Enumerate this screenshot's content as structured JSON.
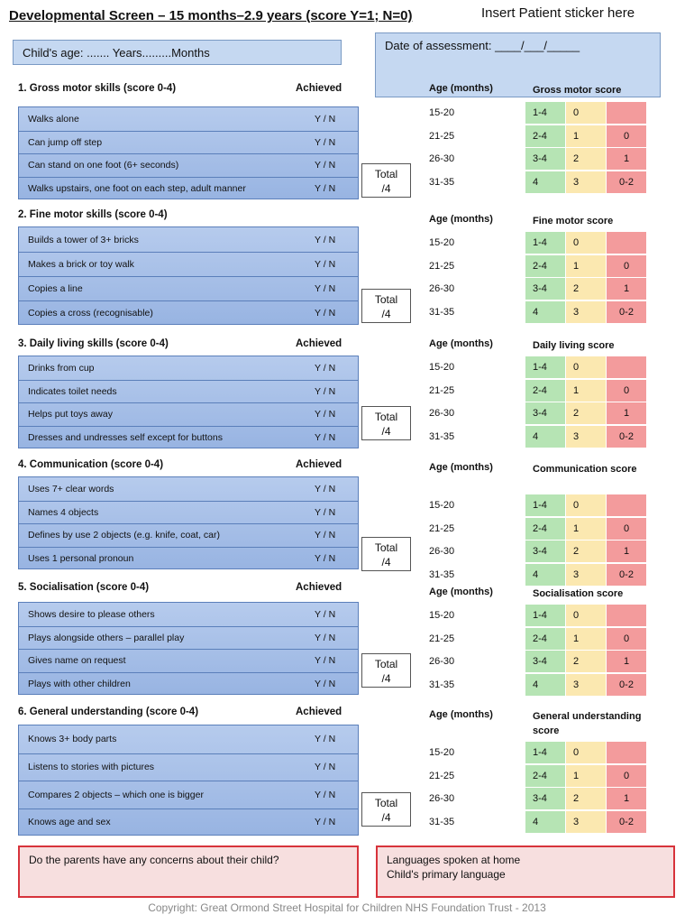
{
  "header": {
    "title": "Developmental Screen – 15 months–2.9 years (score Y=1; N=0)",
    "sticker": "Insert Patient sticker here",
    "child_age": "Child's age: ....... Years.........Months",
    "date_of_assessment": "Date of assessment: ____/___/_____"
  },
  "age_header": "Age (months)",
  "total_label": "Total",
  "total_denominator": "/4",
  "sections": [
    {
      "title": "1. Gross motor skills (score 0-4)",
      "achieved": "Achieved",
      "score_title": "Gross motor score",
      "items": [
        {
          "label": "Walks alone",
          "value": "Y / N"
        },
        {
          "label": "Can jump off step",
          "value": "Y / N"
        },
        {
          "label": "Can stand on one foot (6+ seconds)",
          "value": "Y / N"
        },
        {
          "label": "Walks upstairs, one foot on each step, adult manner",
          "value": "Y / N"
        }
      ],
      "score_rows": [
        {
          "age": "15-20",
          "green": "1-4",
          "yellow": "0",
          "red": ""
        },
        {
          "age": "21-25",
          "green": "2-4",
          "yellow": "1",
          "red": "0"
        },
        {
          "age": "26-30",
          "green": "3-4",
          "yellow": "2",
          "red": "1"
        },
        {
          "age": "31-35",
          "green": "4",
          "yellow": "3",
          "red": "0-2"
        }
      ]
    },
    {
      "title": "2. Fine motor skills (score 0-4)",
      "achieved": "",
      "score_title": "Fine motor score",
      "items": [
        {
          "label": "Builds a tower of 3+ bricks",
          "value": "Y / N"
        },
        {
          "label": "Makes a brick or toy walk",
          "value": "Y / N"
        },
        {
          "label": "Copies a line",
          "value": "Y / N"
        },
        {
          "label": "Copies a cross (recognisable)",
          "value": "Y / N"
        }
      ],
      "score_rows": [
        {
          "age": "15-20",
          "green": "1-4",
          "yellow": "0",
          "red": ""
        },
        {
          "age": "21-25",
          "green": "2-4",
          "yellow": "1",
          "red": "0"
        },
        {
          "age": "26-30",
          "green": "3-4",
          "yellow": "2",
          "red": "1"
        },
        {
          "age": "31-35",
          "green": "4",
          "yellow": "3",
          "red": "0-2"
        }
      ]
    },
    {
      "title": "3. Daily living skills (score 0-4)",
      "achieved": "Achieved",
      "score_title": "Daily living score",
      "items": [
        {
          "label": "Drinks from cup",
          "value": "Y / N"
        },
        {
          "label": "Indicates toilet needs",
          "value": "Y / N"
        },
        {
          "label": "Helps put toys away",
          "value": "Y / N"
        },
        {
          "label": "Dresses and undresses self except for buttons",
          "value": "Y / N"
        }
      ],
      "score_rows": [
        {
          "age": "15-20",
          "green": "1-4",
          "yellow": "0",
          "red": ""
        },
        {
          "age": "21-25",
          "green": "2-4",
          "yellow": "1",
          "red": "0"
        },
        {
          "age": "26-30",
          "green": "3-4",
          "yellow": "2",
          "red": "1"
        },
        {
          "age": "31-35",
          "green": "4",
          "yellow": "3",
          "red": "0-2"
        }
      ]
    },
    {
      "title": "4. Communication (score 0-4)",
      "achieved": "Achieved",
      "score_title": "Communication score",
      "items": [
        {
          "label": "Uses 7+ clear words",
          "value": "Y / N"
        },
        {
          "label": "Names 4 objects",
          "value": "Y / N"
        },
        {
          "label": "Defines by use 2 objects (e.g. knife, coat, car)",
          "value": "Y / N"
        },
        {
          "label": "Uses 1 personal pronoun",
          "value": "Y / N"
        }
      ],
      "score_rows": [
        {
          "age": "15-20",
          "green": "1-4",
          "yellow": "0",
          "red": ""
        },
        {
          "age": "21-25",
          "green": "2-4",
          "yellow": "1",
          "red": "0"
        },
        {
          "age": "26-30",
          "green": "3-4",
          "yellow": "2",
          "red": "1"
        },
        {
          "age": "31-35",
          "green": "4",
          "yellow": "3",
          "red": "0-2"
        }
      ]
    },
    {
      "title": "5. Socialisation (score 0-4)",
      "achieved": "Achieved",
      "score_title": "Socialisation score",
      "items": [
        {
          "label": "Shows desire to please others",
          "value": "Y / N"
        },
        {
          "label": "Plays alongside others – parallel play",
          "value": "Y / N"
        },
        {
          "label": "Gives name on request",
          "value": "Y / N"
        },
        {
          "label": "Plays with other children",
          "value": "Y / N"
        }
      ],
      "score_rows": [
        {
          "age": "15-20",
          "green": "1-4",
          "yellow": "0",
          "red": ""
        },
        {
          "age": "21-25",
          "green": "2-4",
          "yellow": "1",
          "red": "0"
        },
        {
          "age": "26-30",
          "green": "3-4",
          "yellow": "2",
          "red": "1"
        },
        {
          "age": "31-35",
          "green": "4",
          "yellow": "3",
          "red": "0-2"
        }
      ]
    },
    {
      "title": "6. General understanding (score 0-4)",
      "achieved": "Achieved",
      "score_title": "General understanding score",
      "items": [
        {
          "label": "Knows 3+ body parts",
          "value": "Y / N"
        },
        {
          "label": "Listens to stories with pictures",
          "value": "Y / N"
        },
        {
          "label": "Compares 2 objects – which one is bigger",
          "value": "Y / N"
        },
        {
          "label": "Knows age and sex",
          "value": "Y / N"
        }
      ],
      "score_rows": [
        {
          "age": "15-20",
          "green": "1-4",
          "yellow": "0",
          "red": ""
        },
        {
          "age": "21-25",
          "green": "2-4",
          "yellow": "1",
          "red": "0"
        },
        {
          "age": "26-30",
          "green": "3-4",
          "yellow": "2",
          "red": "1"
        },
        {
          "age": "31-35",
          "green": "4",
          "yellow": "3",
          "red": "0-2"
        }
      ]
    }
  ],
  "concerns": {
    "parents_question": "Do the parents have any concerns about their child?",
    "languages_line1": "Languages spoken at home",
    "languages_line2": "Child's primary language"
  },
  "colors": {
    "green": "#b6e4b4",
    "yellow": "#fbe8b0",
    "red": "#f39b9c",
    "item_bg": "#a7bfe8",
    "concern_border": "#d7333b"
  },
  "footer": {
    "copyright": "Copyright: Great Ormond Street Hospital for Children NHS Foundation Trust - 2013"
  }
}
